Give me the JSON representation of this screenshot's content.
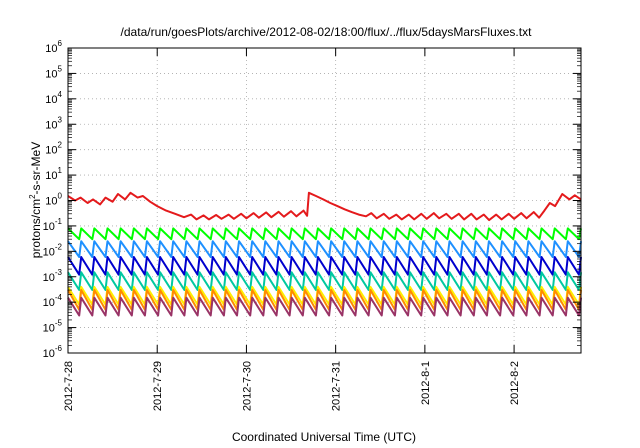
{
  "chart_data": {
    "type": "line",
    "title": "/data/run/goesPlots/archive/2012-08-02/18:00/flux/../flux/5daysMarsFluxes.txt",
    "xlabel": "Coordinated Universal Time (UTC)",
    "ylabel": "protons/cm²-s-sr-MeV",
    "yscale": "log",
    "ylim": [
      1e-06,
      1000000.0
    ],
    "xlim_days": [
      0,
      5.75
    ],
    "grid": true,
    "legend": "none",
    "x_ticks": [
      {
        "day": 0,
        "label": "2012-7-28"
      },
      {
        "day": 1,
        "label": "2012-7-29"
      },
      {
        "day": 2,
        "label": "2012-7-30"
      },
      {
        "day": 3,
        "label": "2012-7-31"
      },
      {
        "day": 4,
        "label": "2012-8-1"
      },
      {
        "day": 5,
        "label": "2012-8-2"
      }
    ],
    "y_tick_exponents": [
      -6,
      -5,
      -4,
      -3,
      -2,
      -1,
      0,
      1,
      2,
      3,
      4,
      5,
      6
    ],
    "sawtooth_cycles": 39,
    "series": [
      {
        "color": "#e41a1c",
        "points": [
          [
            0.0,
            1.5
          ],
          [
            0.08,
            1.0
          ],
          [
            0.14,
            1.3
          ],
          [
            0.22,
            0.8
          ],
          [
            0.28,
            1.1
          ],
          [
            0.36,
            0.7
          ],
          [
            0.42,
            1.3
          ],
          [
            0.5,
            0.9
          ],
          [
            0.56,
            1.8
          ],
          [
            0.64,
            1.1
          ],
          [
            0.7,
            2.0
          ],
          [
            0.78,
            1.3
          ],
          [
            0.84,
            1.5
          ],
          [
            0.92,
            0.9
          ],
          [
            1.0,
            0.6
          ],
          [
            1.1,
            0.4
          ],
          [
            1.2,
            0.3
          ],
          [
            1.3,
            0.22
          ],
          [
            1.38,
            0.28
          ],
          [
            1.44,
            0.18
          ],
          [
            1.52,
            0.26
          ],
          [
            1.58,
            0.18
          ],
          [
            1.66,
            0.27
          ],
          [
            1.72,
            0.19
          ],
          [
            1.8,
            0.28
          ],
          [
            1.86,
            0.19
          ],
          [
            1.94,
            0.3
          ],
          [
            2.0,
            0.2
          ],
          [
            2.08,
            0.32
          ],
          [
            2.14,
            0.21
          ],
          [
            2.22,
            0.34
          ],
          [
            2.28,
            0.22
          ],
          [
            2.36,
            0.36
          ],
          [
            2.42,
            0.23
          ],
          [
            2.5,
            0.38
          ],
          [
            2.56,
            0.24
          ],
          [
            2.64,
            0.4
          ],
          [
            2.68,
            0.25
          ],
          [
            2.7,
            2.0
          ],
          [
            2.78,
            1.5
          ],
          [
            2.86,
            1.1
          ],
          [
            2.94,
            0.8
          ],
          [
            3.02,
            0.6
          ],
          [
            3.1,
            0.45
          ],
          [
            3.18,
            0.35
          ],
          [
            3.26,
            0.28
          ],
          [
            3.34,
            0.24
          ],
          [
            3.4,
            0.32
          ],
          [
            3.46,
            0.2
          ],
          [
            3.54,
            0.3
          ],
          [
            3.6,
            0.19
          ],
          [
            3.68,
            0.28
          ],
          [
            3.74,
            0.18
          ],
          [
            3.82,
            0.28
          ],
          [
            3.88,
            0.18
          ],
          [
            3.96,
            0.3
          ],
          [
            4.02,
            0.19
          ],
          [
            4.1,
            0.32
          ],
          [
            4.16,
            0.2
          ],
          [
            4.24,
            0.3
          ],
          [
            4.3,
            0.19
          ],
          [
            4.38,
            0.3
          ],
          [
            4.44,
            0.18
          ],
          [
            4.52,
            0.3
          ],
          [
            4.58,
            0.18
          ],
          [
            4.66,
            0.28
          ],
          [
            4.72,
            0.17
          ],
          [
            4.8,
            0.28
          ],
          [
            4.86,
            0.18
          ],
          [
            4.94,
            0.3
          ],
          [
            5.0,
            0.19
          ],
          [
            5.08,
            0.32
          ],
          [
            5.14,
            0.2
          ],
          [
            5.22,
            0.35
          ],
          [
            5.28,
            0.21
          ],
          [
            5.34,
            0.4
          ],
          [
            5.4,
            0.8
          ],
          [
            5.46,
            0.6
          ],
          [
            5.54,
            1.8
          ],
          [
            5.62,
            1.1
          ],
          [
            5.68,
            1.6
          ],
          [
            5.75,
            1.1
          ]
        ]
      },
      {
        "color": "#00ff00",
        "top": 0.08,
        "bottom": 0.03
      },
      {
        "color": "#1e90ff",
        "top": 0.025,
        "bottom": 0.006
      },
      {
        "color": "#0000cd",
        "top": 0.006,
        "bottom": 0.0012
      },
      {
        "color": "#00c8a0",
        "top": 0.0015,
        "bottom": 0.0003
      },
      {
        "color": "#ffee00",
        "top": 0.0004,
        "bottom": 8e-05
      },
      {
        "color": "#ff8c00",
        "top": 0.0003,
        "bottom": 5e-05
      },
      {
        "color": "#993366",
        "top": 0.00015,
        "bottom": 3e-05
      }
    ]
  }
}
